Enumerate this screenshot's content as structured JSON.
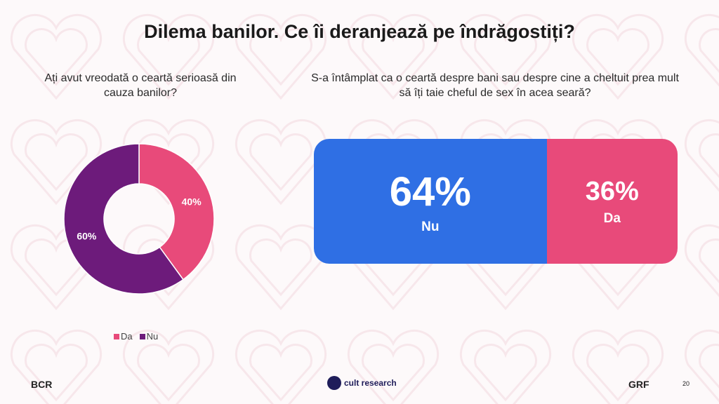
{
  "title": "Dilema banilor. Ce îi deranjează pe îndrăgostiți?",
  "chart_data": [
    {
      "type": "pie",
      "title": "Ați avut vreodată o ceartă serioasă din cauza banilor?",
      "categories": [
        "Da",
        "Nu"
      ],
      "values": [
        40,
        60
      ],
      "labels": [
        "40%",
        "60%"
      ],
      "colors": [
        "#e84a7a",
        "#6d1b7b"
      ],
      "legend": [
        "Da",
        "Nu"
      ],
      "legend_position": "bottom"
    },
    {
      "type": "bar",
      "title": "S-a întâmplat ca o ceartă despre bani sau despre cine a cheltuit prea mult să îți taie cheful de sex în acea seară?",
      "categories": [
        "Nu",
        "Da"
      ],
      "values": [
        64,
        36
      ],
      "labels": [
        "64%",
        "36%"
      ],
      "colors": [
        "#2f6fe4",
        "#e84a7a"
      ],
      "stacked": true
    }
  ],
  "footer": {
    "left_logo": "BCR",
    "center_logo": "cult research",
    "right_logo": "GRF",
    "page": "20"
  }
}
